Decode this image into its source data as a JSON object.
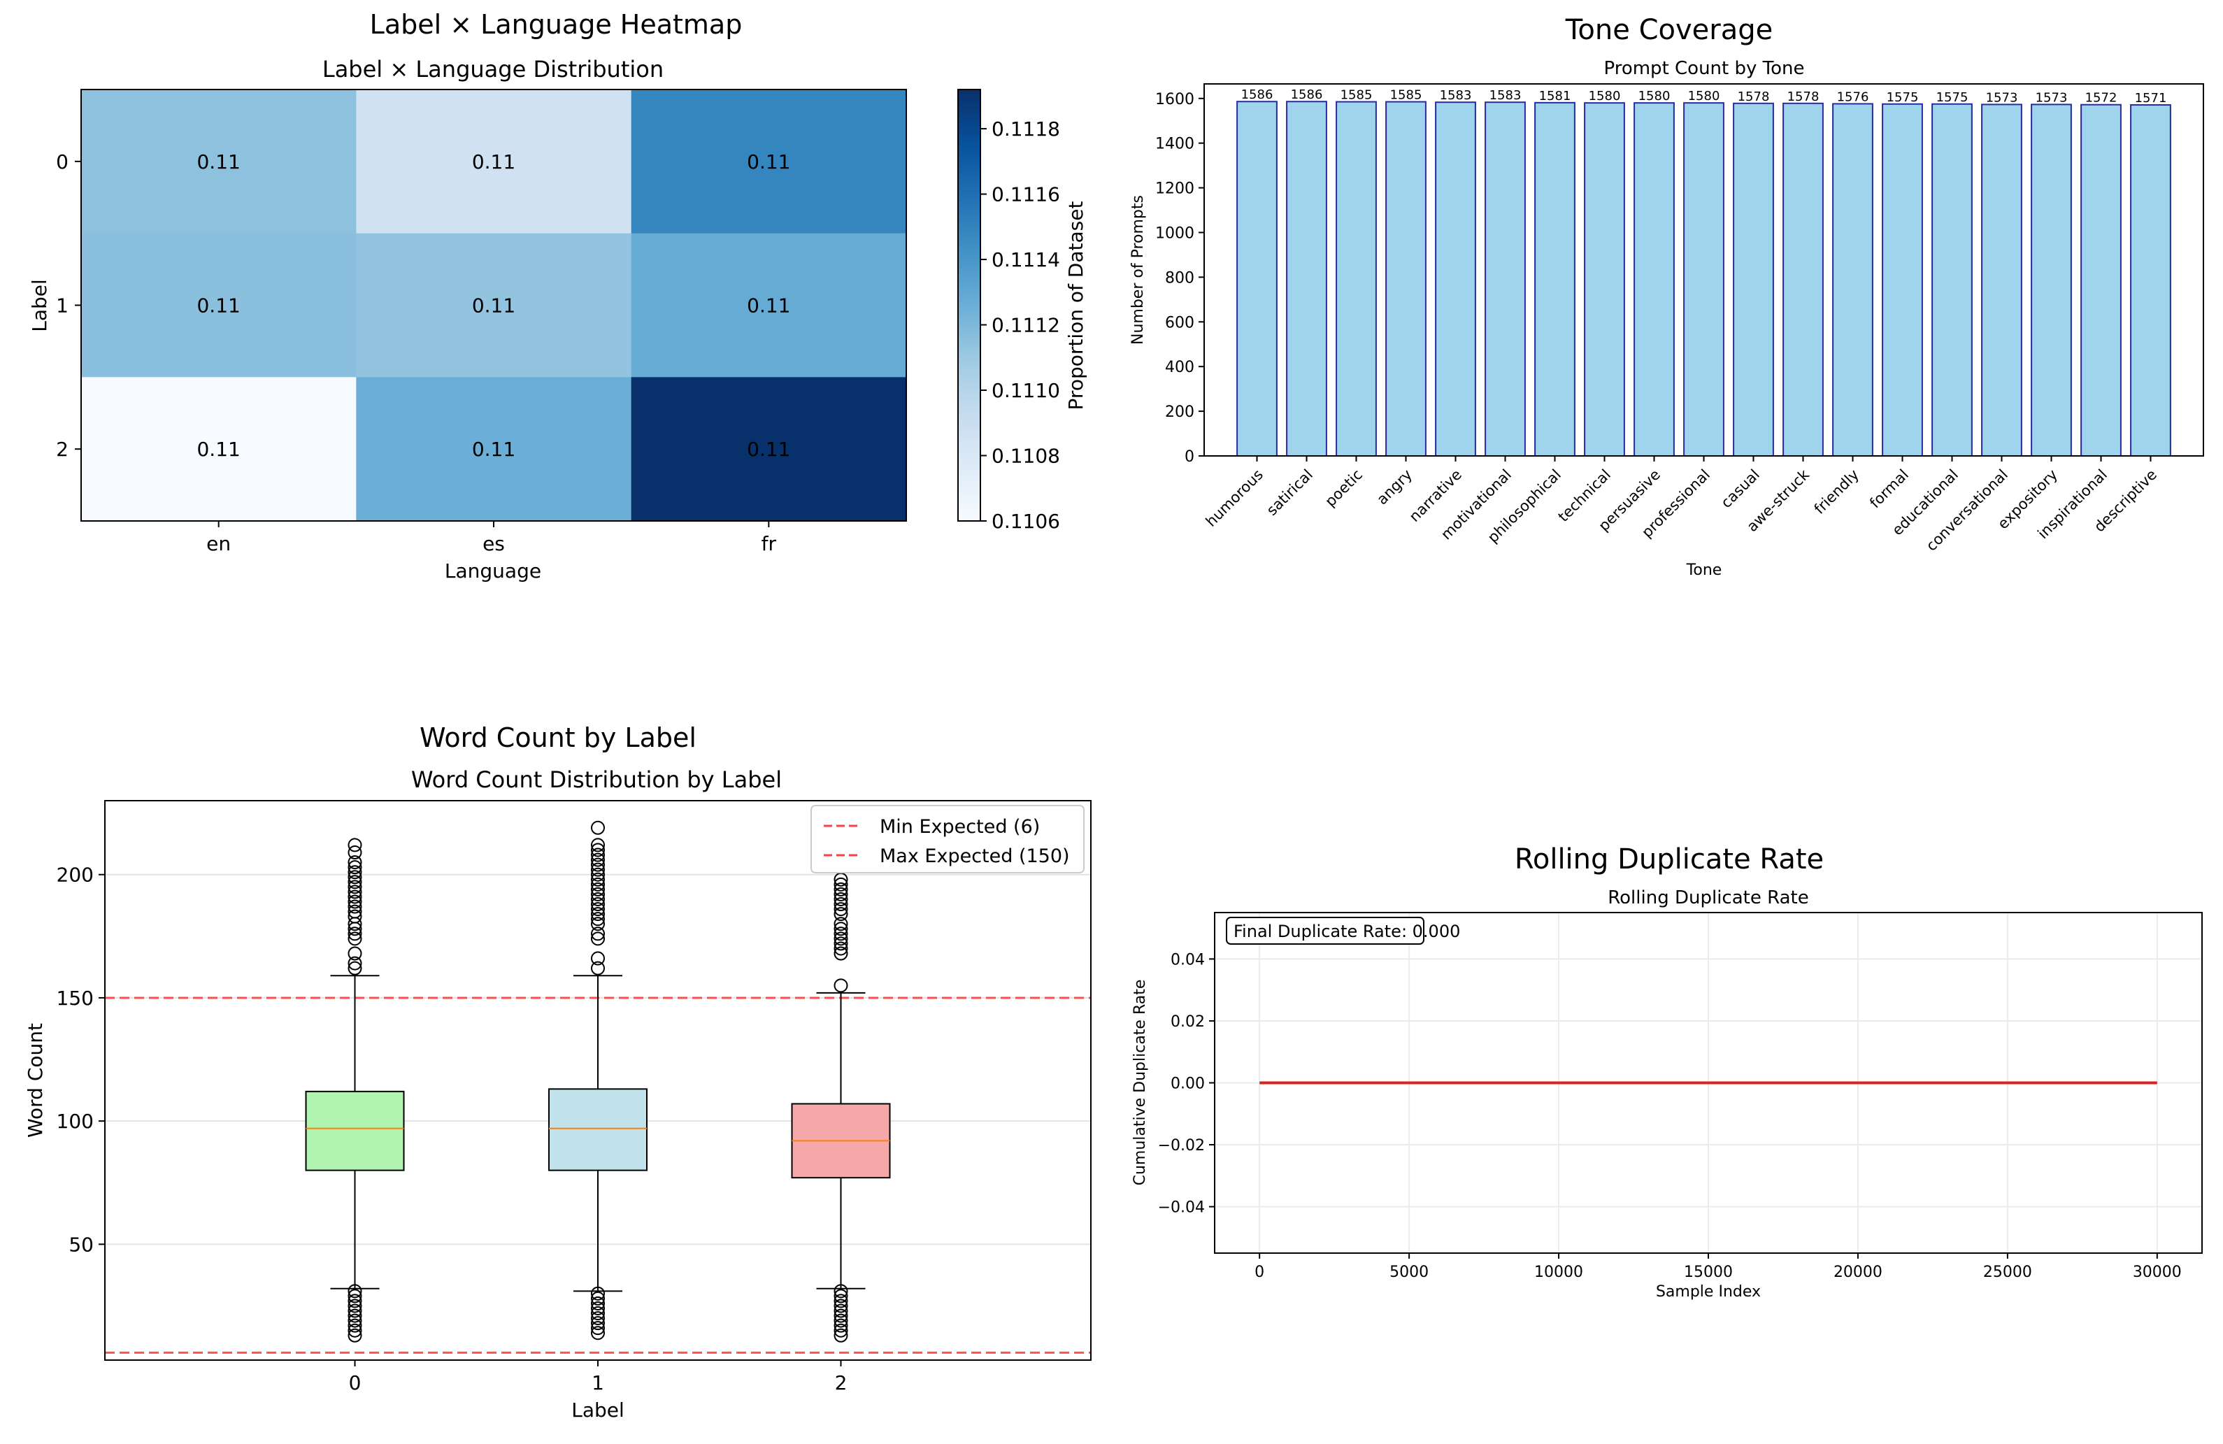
{
  "panels": {
    "heatmap": {
      "suptitle": "Label × Language Heatmap"
    },
    "tone": {
      "suptitle": "Tone Coverage"
    },
    "wordcount": {
      "suptitle": "Word Count by Label"
    },
    "duplicate": {
      "suptitle": "Rolling Duplicate Rate"
    }
  },
  "chart_data": [
    {
      "type": "heatmap",
      "title": "Label × Language Distribution",
      "xlabel": "Language",
      "ylabel": "Label",
      "x_categories": [
        "en",
        "es",
        "fr"
      ],
      "y_categories": [
        "0",
        "1",
        "2"
      ],
      "values": [
        [
          0.11115,
          0.11086,
          0.11149
        ],
        [
          0.11116,
          0.11113,
          0.11128
        ],
        [
          0.1106,
          0.11126,
          0.11193
        ]
      ],
      "cell_labels": [
        [
          "0.11",
          "0.11",
          "0.11"
        ],
        [
          "0.11",
          "0.11",
          "0.11"
        ],
        [
          "0.11",
          "0.11",
          "0.11"
        ]
      ],
      "colormap": "Blues",
      "colorbar": {
        "label": "Proportion of Dataset",
        "range": [
          0.1106,
          0.11192
        ],
        "ticks": [
          "0.1106",
          "0.1108",
          "0.1110",
          "0.1112",
          "0.1114",
          "0.1116",
          "0.1118"
        ]
      }
    },
    {
      "type": "bar",
      "title": "Prompt Count by Tone",
      "xlabel": "Tone",
      "ylabel": "Number of Prompts",
      "categories": [
        "humorous",
        "satirical",
        "poetic",
        "angry",
        "narrative",
        "motivational",
        "philosophical",
        "technical",
        "persuasive",
        "professional",
        "casual",
        "awe-struck",
        "friendly",
        "formal",
        "educational",
        "conversational",
        "expository",
        "inspirational",
        "descriptive"
      ],
      "values": [
        1586,
        1586,
        1585,
        1585,
        1583,
        1583,
        1581,
        1580,
        1580,
        1580,
        1578,
        1578,
        1576,
        1575,
        1575,
        1573,
        1573,
        1572,
        1571
      ],
      "ylim": [
        0,
        1665
      ],
      "yticks": [
        0,
        200,
        400,
        600,
        800,
        1000,
        1200,
        1400,
        1600
      ],
      "bar_color": "#a0d4ec",
      "edge_color": "#2a2aa0"
    },
    {
      "type": "box",
      "title": "Word Count Distribution by Label",
      "xlabel": "Label",
      "ylabel": "Word Count",
      "categories": [
        "0",
        "1",
        "2"
      ],
      "ylim": [
        3,
        230
      ],
      "yticks": [
        50,
        100,
        150,
        200
      ],
      "grid": "y",
      "legend_position": "top-right",
      "boxes": [
        {
          "q1": 80,
          "median": 97,
          "q3": 112,
          "whisker_low": 32,
          "whisker_high": 159,
          "color": "#b0f2b0",
          "outliers": [
            162,
            164,
            168,
            174,
            176,
            178,
            180,
            183,
            185,
            187,
            189,
            191,
            193,
            195,
            197,
            199,
            201,
            203,
            205,
            209,
            212,
            13,
            15,
            17,
            19,
            21,
            23,
            25,
            27,
            29,
            31
          ]
        },
        {
          "q1": 80,
          "median": 97,
          "q3": 113,
          "whisker_low": 31,
          "whisker_high": 159,
          "color": "#c2e2ec",
          "outliers": [
            162,
            166,
            174,
            176,
            180,
            182,
            184,
            186,
            188,
            190,
            192,
            194,
            196,
            198,
            200,
            202,
            204,
            206,
            208,
            210,
            212,
            219,
            14,
            16,
            18,
            20,
            22,
            24,
            26,
            28,
            30
          ]
        },
        {
          "q1": 77,
          "median": 92,
          "q3": 107,
          "whisker_low": 32,
          "whisker_high": 152,
          "color": "#f4a8a8",
          "outliers": [
            155,
            168,
            170,
            172,
            174,
            176,
            178,
            180,
            184,
            186,
            188,
            190,
            192,
            194,
            196,
            198,
            13,
            15,
            17,
            19,
            21,
            23,
            25,
            27,
            29,
            31
          ]
        }
      ],
      "reference_lines": [
        {
          "name": "Min Expected (6)",
          "y": 6,
          "color": "#ff4040",
          "style": "dashed"
        },
        {
          "name": "Max Expected (150)",
          "y": 150,
          "color": "#ff4040",
          "style": "dashed"
        }
      ]
    },
    {
      "type": "line",
      "title": "Rolling Duplicate Rate",
      "xlabel": "Sample Index",
      "ylabel": "Cumulative Duplicate Rate",
      "x": [
        0,
        30000
      ],
      "y": [
        0.0,
        0.0
      ],
      "xlim": [
        -1500,
        31500
      ],
      "ylim": [
        -0.055,
        0.055
      ],
      "xticks": [
        0,
        5000,
        10000,
        15000,
        20000,
        25000,
        30000
      ],
      "yticks": [
        0.04,
        0.02,
        0.0,
        -0.02,
        -0.04
      ],
      "ytick_labels": [
        "0.04",
        "0.02",
        "0.00",
        "−0.02",
        "−0.04"
      ],
      "grid": true,
      "line_color": "#e02020",
      "annotation": "Final Duplicate Rate: 0.000"
    }
  ]
}
